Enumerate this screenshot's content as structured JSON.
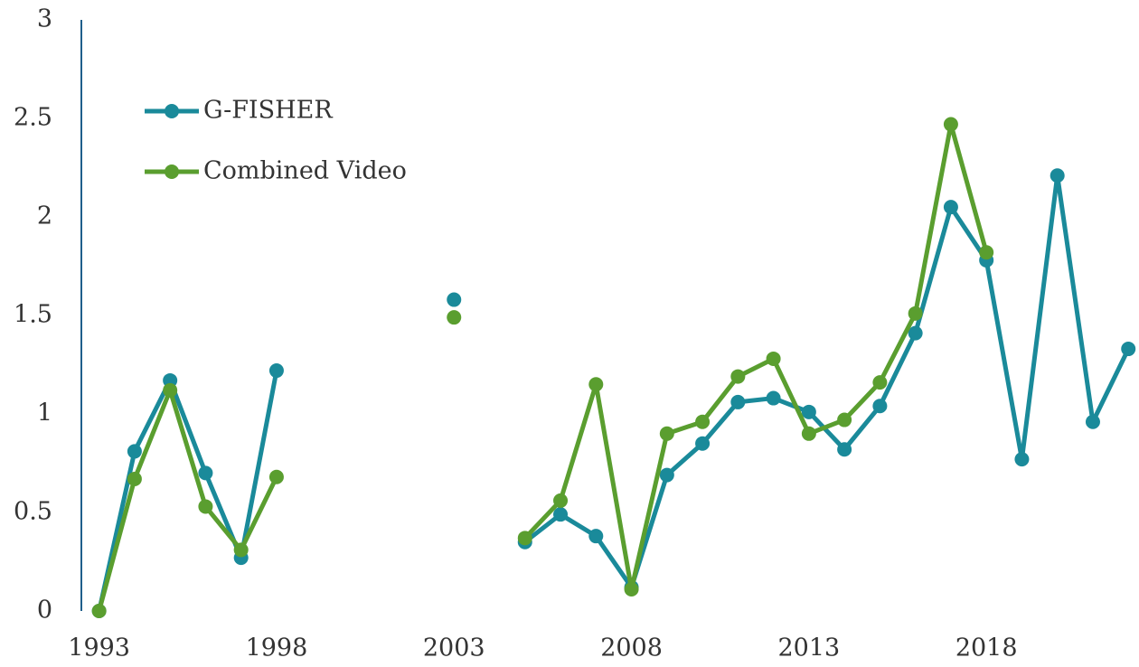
{
  "chart_data": {
    "type": "line",
    "x": [
      1993,
      1994,
      1995,
      1996,
      1997,
      1998,
      1999,
      2000,
      2001,
      2002,
      2003,
      2004,
      2005,
      2006,
      2007,
      2008,
      2009,
      2010,
      2011,
      2012,
      2013,
      2014,
      2015,
      2016,
      2017,
      2018,
      2019,
      2020,
      2021,
      2022
    ],
    "series": [
      {
        "name": "G-FISHER",
        "color": "#1a8a9a",
        "values": [
          0,
          0.81,
          1.17,
          0.7,
          0.27,
          1.22,
          null,
          null,
          null,
          null,
          1.58,
          null,
          0.35,
          0.49,
          0.38,
          0.12,
          0.69,
          0.85,
          1.06,
          1.08,
          1.01,
          0.82,
          1.04,
          1.41,
          2.05,
          1.78,
          0.77,
          2.21,
          0.96,
          1.33
        ]
      },
      {
        "name": "Combined Video",
        "color": "#5a9e2f",
        "values": [
          0,
          0.67,
          1.12,
          0.53,
          0.31,
          0.68,
          null,
          null,
          null,
          null,
          1.49,
          null,
          0.37,
          0.56,
          1.15,
          0.11,
          0.9,
          0.96,
          1.19,
          1.28,
          0.9,
          0.97,
          1.16,
          1.51,
          2.47,
          1.82,
          null,
          null,
          null,
          null
        ]
      }
    ],
    "xlim": [
      1992.5,
      2022.3
    ],
    "xticks": [
      1993,
      1998,
      2003,
      2008,
      2013,
      2018
    ],
    "ylim": [
      0,
      3
    ],
    "yticks": [
      0,
      0.5,
      1,
      1.5,
      2,
      2.5,
      3
    ],
    "grid": false,
    "legend": "upper-left"
  }
}
